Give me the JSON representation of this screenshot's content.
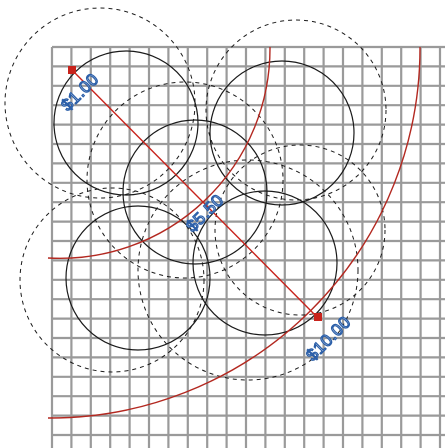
{
  "labels": {
    "low": "$1.00",
    "mid": "$5.50",
    "high": "$10.00"
  },
  "colors": {
    "grid": "#9a9a9a",
    "circle": "#1a1a1a",
    "dashed": "#1a1a1a",
    "arc": "#b32820",
    "marker": "#c8231c",
    "label_outline": "#2a5ea8",
    "label_fill": "#ffffff"
  }
}
